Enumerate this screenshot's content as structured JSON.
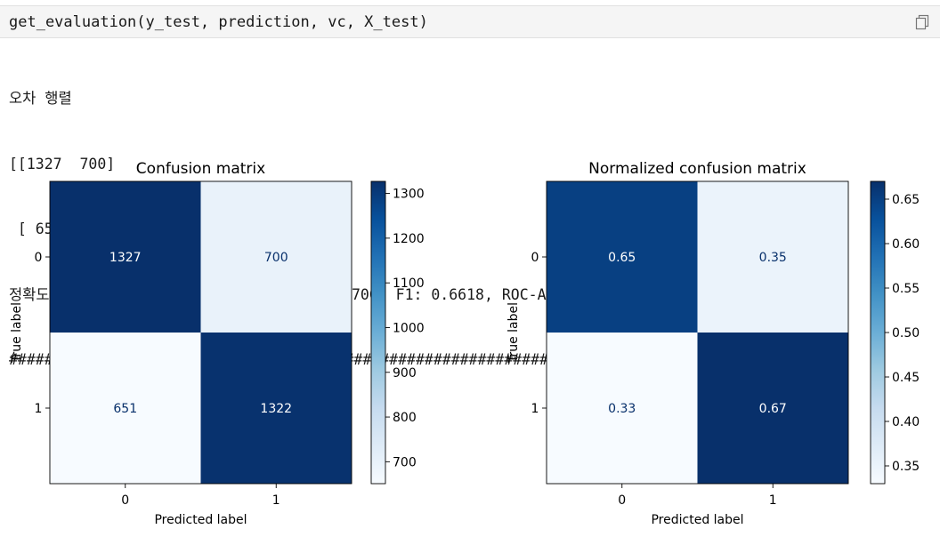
{
  "cell": {
    "code": "get_evaluation(y_test, prediction, vc, X_test)",
    "copy_icon": "copy-icon"
  },
  "output": {
    "lines": [
      "오차 행렬",
      "[[1327  700]",
      " [ 651 1322]]",
      "정확도: 0.6623, 정밀도: 0.6538, 재현율: 0.6700, F1: 0.6618, ROC-AUC: 0.6624",
      "################################################################################"
    ]
  },
  "chart_data": [
    {
      "type": "heatmap",
      "title": "Confusion matrix",
      "xlabel": "Predicted label",
      "ylabel": "True label",
      "x_ticks": [
        "0",
        "1"
      ],
      "y_ticks": [
        "0",
        "1"
      ],
      "values": [
        [
          1327,
          700
        ],
        [
          651,
          1322
        ]
      ],
      "labels": [
        [
          "1327",
          "700"
        ],
        [
          "651",
          "1322"
        ]
      ],
      "colormap": "Blues",
      "vmin": 651,
      "vmax": 1327,
      "colorbar_ticks": [
        700,
        800,
        900,
        1000,
        1100,
        1200,
        1300
      ],
      "colorbar_tick_labels": [
        "700",
        "800",
        "900",
        "1000",
        "1100",
        "1200",
        "1300"
      ]
    },
    {
      "type": "heatmap",
      "title": "Normalized confusion matrix",
      "xlabel": "Predicted label",
      "ylabel": "True label",
      "x_ticks": [
        "0",
        "1"
      ],
      "y_ticks": [
        "0",
        "1"
      ],
      "values": [
        [
          0.65,
          0.35
        ],
        [
          0.33,
          0.67
        ]
      ],
      "labels": [
        [
          "0.65",
          "0.35"
        ],
        [
          "0.33",
          "0.67"
        ]
      ],
      "colormap": "Blues",
      "vmin": 0.33,
      "vmax": 0.67,
      "colorbar_ticks": [
        0.35,
        0.4,
        0.45,
        0.5,
        0.55,
        0.6,
        0.65
      ],
      "colorbar_tick_labels": [
        "0.35",
        "0.40",
        "0.45",
        "0.50",
        "0.55",
        "0.60",
        "0.65"
      ]
    }
  ]
}
